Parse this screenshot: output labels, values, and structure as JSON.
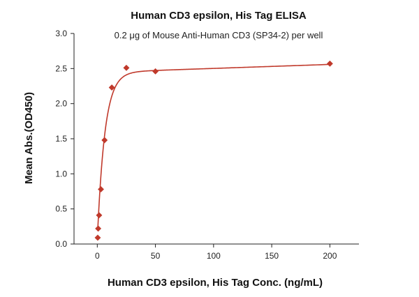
{
  "chart_data": {
    "type": "scatter",
    "title": "Human CD3 epsilon, His Tag ELISA",
    "subtitle": "0.2 μg of Mouse Anti-Human CD3 (SP34-2) per well",
    "xlabel": "Human CD3 epsilon, His Tag Conc. (ng/mL)",
    "ylabel": "Mean Abs.(OD450)",
    "xlim": [
      -20,
      225
    ],
    "ylim": [
      0,
      3.0
    ],
    "x_ticks": [
      0,
      50,
      100,
      150,
      200
    ],
    "y_ticks": [
      0.0,
      0.5,
      1.0,
      1.5,
      2.0,
      2.5,
      3.0
    ],
    "grid": false,
    "fit_line": true,
    "series": [
      {
        "color": "#c0392b",
        "marker": "diamond",
        "x": [
          0.39,
          0.78,
          1.56,
          3.125,
          6.25,
          12.5,
          25,
          50,
          200
        ],
        "y": [
          0.09,
          0.22,
          0.41,
          0.78,
          1.48,
          2.23,
          2.51,
          2.46,
          2.57
        ]
      }
    ]
  }
}
